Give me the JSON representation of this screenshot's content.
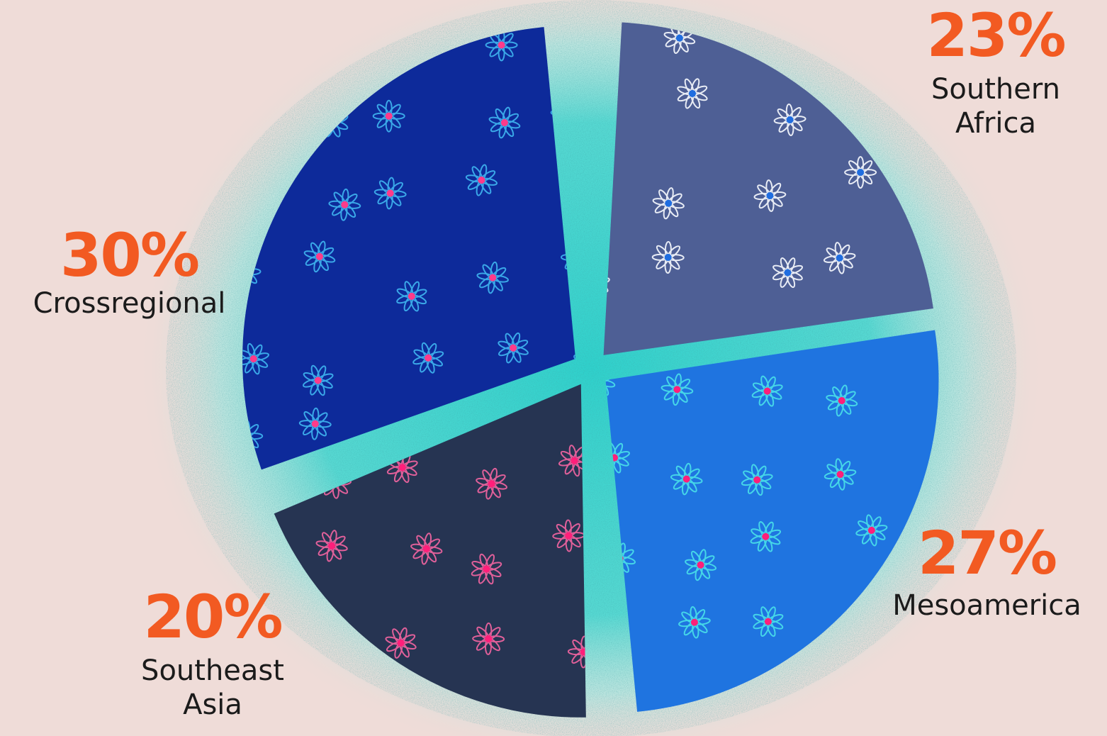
{
  "chart_data": {
    "type": "pie",
    "series": [
      {
        "name": "Southern Africa",
        "value": 23,
        "value_label": "23%",
        "fill": "#4e5f95",
        "flower_petal": "#e8ecf5",
        "flower_center": "#1f6de0"
      },
      {
        "name": "Mesoamerica",
        "value": 27,
        "value_label": "27%",
        "fill": "#1f74e0",
        "flower_petal": "#45d6e8",
        "flower_center": "#ff1f7a"
      },
      {
        "name": "Southeast Asia",
        "value": 20,
        "value_label": "20%",
        "fill": "#263452",
        "flower_petal": "#e0609a",
        "flower_center": "#ff1f7a"
      },
      {
        "name": "Crossregional",
        "value": 30,
        "value_label": "30%",
        "fill": "#0d2a9a",
        "flower_petal": "#3aa8e8",
        "flower_center": "#ff3a8a"
      }
    ],
    "colors": {
      "background": "#efdcd8",
      "glow": "#3fd6d0",
      "percent_text": "#f25a22",
      "label_text": "#1b1b1b"
    }
  },
  "labels": [
    {
      "percent": "23%",
      "region": "Southern\nAfrica"
    },
    {
      "percent": "27%",
      "region": "Mesoamerica"
    },
    {
      "percent": "20%",
      "region": "Southeast\nAsia"
    },
    {
      "percent": "30%",
      "region": "Crossregional"
    }
  ]
}
